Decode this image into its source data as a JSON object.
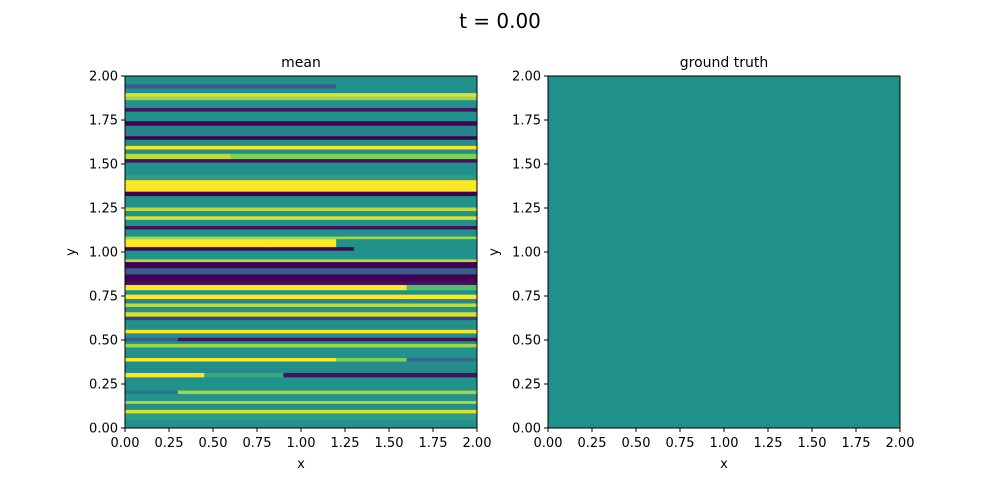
{
  "figure": {
    "suptitle": "t = 0.00"
  },
  "chart_data": [
    {
      "type": "heatmap",
      "title": "mean",
      "xlabel": "x",
      "ylabel": "y",
      "xlim": [
        0,
        2
      ],
      "ylim": [
        0,
        2
      ],
      "xticks": [
        "0.00",
        "0.25",
        "0.50",
        "0.75",
        "1.00",
        "1.25",
        "1.50",
        "1.75",
        "2.00"
      ],
      "yticks": [
        "0.00",
        "0.25",
        "0.50",
        "0.75",
        "1.00",
        "1.25",
        "1.50",
        "1.75",
        "2.00"
      ],
      "colormap": "viridis",
      "bands": [
        {
          "y0": 0.0,
          "y1": 0.045,
          "segments": [
            {
              "x0": 0.0,
              "x1": 2.0,
              "v": 0.5
            }
          ]
        },
        {
          "y0": 0.045,
          "y1": 0.085,
          "segments": [
            {
              "x0": 0.0,
              "x1": 2.0,
              "v": 0.55
            }
          ]
        },
        {
          "y0": 0.085,
          "y1": 0.105,
          "segments": [
            {
              "x0": 0.0,
              "x1": 2.0,
              "v": 0.95
            }
          ]
        },
        {
          "y0": 0.105,
          "y1": 0.14,
          "segments": [
            {
              "x0": 0.0,
              "x1": 2.0,
              "v": 0.5
            }
          ]
        },
        {
          "y0": 0.14,
          "y1": 0.155,
          "segments": [
            {
              "x0": 0.0,
              "x1": 2.0,
              "v": 0.9
            }
          ]
        },
        {
          "y0": 0.155,
          "y1": 0.195,
          "segments": [
            {
              "x0": 0.0,
              "x1": 2.0,
              "v": 0.52
            }
          ]
        },
        {
          "y0": 0.195,
          "y1": 0.215,
          "segments": [
            {
              "x0": 0.0,
              "x1": 0.3,
              "v": 0.4
            },
            {
              "x0": 0.3,
              "x1": 2.0,
              "v": 0.85
            }
          ]
        },
        {
          "y0": 0.215,
          "y1": 0.29,
          "segments": [
            {
              "x0": 0.0,
              "x1": 2.0,
              "v": 0.5
            }
          ]
        },
        {
          "y0": 0.29,
          "y1": 0.315,
          "segments": [
            {
              "x0": 0.0,
              "x1": 0.45,
              "v": 1.0
            },
            {
              "x0": 0.45,
              "x1": 0.9,
              "v": 0.6
            },
            {
              "x0": 0.9,
              "x1": 2.0,
              "v": 0.05
            }
          ]
        },
        {
          "y0": 0.315,
          "y1": 0.38,
          "segments": [
            {
              "x0": 0.0,
              "x1": 2.0,
              "v": 0.48
            }
          ]
        },
        {
          "y0": 0.38,
          "y1": 0.4,
          "segments": [
            {
              "x0": 0.0,
              "x1": 1.2,
              "v": 1.0
            },
            {
              "x0": 1.2,
              "x1": 1.6,
              "v": 0.8
            },
            {
              "x0": 1.6,
              "x1": 2.0,
              "v": 0.35
            }
          ]
        },
        {
          "y0": 0.4,
          "y1": 0.46,
          "segments": [
            {
              "x0": 0.0,
              "x1": 2.0,
              "v": 0.5
            }
          ]
        },
        {
          "y0": 0.46,
          "y1": 0.48,
          "segments": [
            {
              "x0": 0.0,
              "x1": 2.0,
              "v": 0.85
            }
          ]
        },
        {
          "y0": 0.48,
          "y1": 0.495,
          "segments": [
            {
              "x0": 0.0,
              "x1": 2.0,
              "v": 0.5
            }
          ]
        },
        {
          "y0": 0.495,
          "y1": 0.515,
          "segments": [
            {
              "x0": 0.0,
              "x1": 0.3,
              "v": 0.3
            },
            {
              "x0": 0.3,
              "x1": 2.0,
              "v": 0.05
            }
          ]
        },
        {
          "y0": 0.515,
          "y1": 0.54,
          "segments": [
            {
              "x0": 0.0,
              "x1": 2.0,
              "v": 0.5
            }
          ]
        },
        {
          "y0": 0.54,
          "y1": 0.56,
          "segments": [
            {
              "x0": 0.0,
              "x1": 2.0,
              "v": 1.0
            }
          ]
        },
        {
          "y0": 0.56,
          "y1": 0.615,
          "segments": [
            {
              "x0": 0.0,
              "x1": 2.0,
              "v": 0.5
            }
          ]
        },
        {
          "y0": 0.615,
          "y1": 0.635,
          "segments": [
            {
              "x0": 0.0,
              "x1": 2.0,
              "v": 0.2
            }
          ]
        },
        {
          "y0": 0.635,
          "y1": 0.66,
          "segments": [
            {
              "x0": 0.0,
              "x1": 2.0,
              "v": 0.95
            }
          ]
        },
        {
          "y0": 0.66,
          "y1": 0.69,
          "segments": [
            {
              "x0": 0.0,
              "x1": 2.0,
              "v": 0.5
            }
          ]
        },
        {
          "y0": 0.69,
          "y1": 0.71,
          "segments": [
            {
              "x0": 0.0,
              "x1": 2.0,
              "v": 0.9
            }
          ]
        },
        {
          "y0": 0.71,
          "y1": 0.735,
          "segments": [
            {
              "x0": 0.0,
              "x1": 2.0,
              "v": 0.45
            }
          ]
        },
        {
          "y0": 0.735,
          "y1": 0.76,
          "segments": [
            {
              "x0": 0.0,
              "x1": 2.0,
              "v": 1.0
            }
          ]
        },
        {
          "y0": 0.76,
          "y1": 0.785,
          "segments": [
            {
              "x0": 0.0,
              "x1": 2.0,
              "v": 0.5
            }
          ]
        },
        {
          "y0": 0.785,
          "y1": 0.815,
          "segments": [
            {
              "x0": 0.0,
              "x1": 1.6,
              "v": 1.0
            },
            {
              "x0": 1.6,
              "x1": 2.0,
              "v": 0.7
            }
          ]
        },
        {
          "y0": 0.815,
          "y1": 0.835,
          "segments": [
            {
              "x0": 0.0,
              "x1": 2.0,
              "v": 0.05
            }
          ]
        },
        {
          "y0": 0.835,
          "y1": 0.875,
          "segments": [
            {
              "x0": 0.0,
              "x1": 2.0,
              "v": 0.0
            }
          ]
        },
        {
          "y0": 0.875,
          "y1": 0.91,
          "segments": [
            {
              "x0": 0.0,
              "x1": 2.0,
              "v": 0.3
            }
          ]
        },
        {
          "y0": 0.91,
          "y1": 0.945,
          "segments": [
            {
              "x0": 0.0,
              "x1": 2.0,
              "v": 0.0
            }
          ]
        },
        {
          "y0": 0.945,
          "y1": 0.96,
          "segments": [
            {
              "x0": 0.0,
              "x1": 2.0,
              "v": 0.9
            }
          ]
        },
        {
          "y0": 0.96,
          "y1": 1.01,
          "segments": [
            {
              "x0": 0.0,
              "x1": 2.0,
              "v": 0.5
            }
          ]
        },
        {
          "y0": 1.01,
          "y1": 1.03,
          "segments": [
            {
              "x0": 0.0,
              "x1": 1.3,
              "v": 0.0
            },
            {
              "x0": 1.3,
              "x1": 2.0,
              "v": 0.5
            }
          ]
        },
        {
          "y0": 1.03,
          "y1": 1.075,
          "segments": [
            {
              "x0": 0.0,
              "x1": 0.8,
              "v": 1.0
            },
            {
              "x0": 0.8,
              "x1": 1.2,
              "v": 1.0
            },
            {
              "x0": 1.2,
              "x1": 2.0,
              "v": 0.5
            }
          ]
        },
        {
          "y0": 1.075,
          "y1": 1.09,
          "segments": [
            {
              "x0": 0.0,
              "x1": 2.0,
              "v": 0.85
            }
          ]
        },
        {
          "y0": 1.09,
          "y1": 1.13,
          "segments": [
            {
              "x0": 0.0,
              "x1": 2.0,
              "v": 0.5
            }
          ]
        },
        {
          "y0": 1.13,
          "y1": 1.15,
          "segments": [
            {
              "x0": 0.0,
              "x1": 2.0,
              "v": 0.05
            }
          ]
        },
        {
          "y0": 1.15,
          "y1": 1.185,
          "segments": [
            {
              "x0": 0.0,
              "x1": 2.0,
              "v": 0.5
            }
          ]
        },
        {
          "y0": 1.185,
          "y1": 1.205,
          "segments": [
            {
              "x0": 0.0,
              "x1": 2.0,
              "v": 0.95
            }
          ]
        },
        {
          "y0": 1.205,
          "y1": 1.235,
          "segments": [
            {
              "x0": 0.0,
              "x1": 2.0,
              "v": 0.5
            }
          ]
        },
        {
          "y0": 1.235,
          "y1": 1.255,
          "segments": [
            {
              "x0": 0.0,
              "x1": 2.0,
              "v": 0.9
            }
          ]
        },
        {
          "y0": 1.255,
          "y1": 1.32,
          "segments": [
            {
              "x0": 0.0,
              "x1": 2.0,
              "v": 0.5
            }
          ]
        },
        {
          "y0": 1.32,
          "y1": 1.345,
          "segments": [
            {
              "x0": 0.0,
              "x1": 2.0,
              "v": 0.0
            }
          ]
        },
        {
          "y0": 1.345,
          "y1": 1.41,
          "segments": [
            {
              "x0": 0.0,
              "x1": 2.0,
              "v": 1.0
            }
          ]
        },
        {
          "y0": 1.41,
          "y1": 1.44,
          "segments": [
            {
              "x0": 0.0,
              "x1": 2.0,
              "v": 0.55
            }
          ]
        },
        {
          "y0": 1.44,
          "y1": 1.51,
          "segments": [
            {
              "x0": 0.0,
              "x1": 2.0,
              "v": 0.5
            }
          ]
        },
        {
          "y0": 1.51,
          "y1": 1.53,
          "segments": [
            {
              "x0": 0.0,
              "x1": 2.0,
              "v": 0.05
            }
          ]
        },
        {
          "y0": 1.53,
          "y1": 1.56,
          "segments": [
            {
              "x0": 0.0,
              "x1": 0.6,
              "v": 0.9
            },
            {
              "x0": 0.6,
              "x1": 2.0,
              "v": 0.8
            }
          ]
        },
        {
          "y0": 1.56,
          "y1": 1.585,
          "segments": [
            {
              "x0": 0.0,
              "x1": 2.0,
              "v": 0.5
            }
          ]
        },
        {
          "y0": 1.585,
          "y1": 1.605,
          "segments": [
            {
              "x0": 0.0,
              "x1": 2.0,
              "v": 1.0
            }
          ]
        },
        {
          "y0": 1.605,
          "y1": 1.64,
          "segments": [
            {
              "x0": 0.0,
              "x1": 2.0,
              "v": 0.5
            }
          ]
        },
        {
          "y0": 1.64,
          "y1": 1.66,
          "segments": [
            {
              "x0": 0.0,
              "x1": 2.0,
              "v": 0.0
            }
          ]
        },
        {
          "y0": 1.66,
          "y1": 1.72,
          "segments": [
            {
              "x0": 0.0,
              "x1": 2.0,
              "v": 0.45
            }
          ]
        },
        {
          "y0": 1.72,
          "y1": 1.745,
          "segments": [
            {
              "x0": 0.0,
              "x1": 2.0,
              "v": 0.0
            }
          ]
        },
        {
          "y0": 1.745,
          "y1": 1.8,
          "segments": [
            {
              "x0": 0.0,
              "x1": 2.0,
              "v": 0.5
            }
          ]
        },
        {
          "y0": 1.8,
          "y1": 1.82,
          "segments": [
            {
              "x0": 0.0,
              "x1": 2.0,
              "v": 0.05
            }
          ]
        },
        {
          "y0": 1.82,
          "y1": 1.865,
          "segments": [
            {
              "x0": 0.0,
              "x1": 2.0,
              "v": 0.5
            }
          ]
        },
        {
          "y0": 1.865,
          "y1": 1.885,
          "segments": [
            {
              "x0": 0.0,
              "x1": 2.0,
              "v": 0.85
            }
          ]
        },
        {
          "y0": 1.885,
          "y1": 1.905,
          "segments": [
            {
              "x0": 0.0,
              "x1": 2.0,
              "v": 0.95
            }
          ]
        },
        {
          "y0": 1.905,
          "y1": 1.93,
          "segments": [
            {
              "x0": 0.0,
              "x1": 2.0,
              "v": 0.5
            }
          ]
        },
        {
          "y0": 1.93,
          "y1": 1.955,
          "segments": [
            {
              "x0": 0.0,
              "x1": 1.2,
              "v": 0.3
            },
            {
              "x0": 1.2,
              "x1": 2.0,
              "v": 0.5
            }
          ]
        },
        {
          "y0": 1.955,
          "y1": 2.0,
          "segments": [
            {
              "x0": 0.0,
              "x1": 2.0,
              "v": 0.5
            }
          ]
        }
      ]
    },
    {
      "type": "heatmap",
      "title": "ground truth",
      "xlabel": "x",
      "ylabel": "y",
      "xlim": [
        0,
        2
      ],
      "ylim": [
        0,
        2
      ],
      "xticks": [
        "0.00",
        "0.25",
        "0.50",
        "0.75",
        "1.00",
        "1.25",
        "1.50",
        "1.75",
        "2.00"
      ],
      "yticks": [
        "0.00",
        "0.25",
        "0.50",
        "0.75",
        "1.00",
        "1.25",
        "1.50",
        "1.75",
        "2.00"
      ],
      "colormap": "viridis",
      "uniform_value": 0.5
    }
  ]
}
